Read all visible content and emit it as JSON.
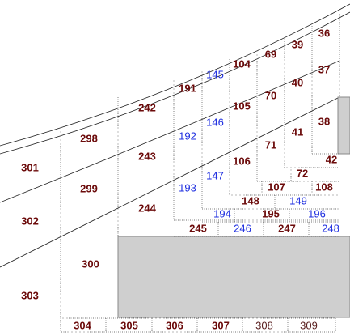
{
  "sections": [
    "301",
    "302",
    "303",
    "298",
    "299",
    "300",
    "242",
    "243",
    "244",
    "191",
    "192",
    "193",
    "145",
    "146",
    "147",
    "104",
    "105",
    "106",
    "69",
    "70",
    "71",
    "39",
    "40",
    "41",
    "36",
    "37",
    "38",
    "42",
    "72",
    "107",
    "108",
    "148",
    "149",
    "194",
    "195",
    "196",
    "245",
    "246",
    "247",
    "248",
    "304",
    "305",
    "306",
    "307",
    "308",
    "309"
  ]
}
